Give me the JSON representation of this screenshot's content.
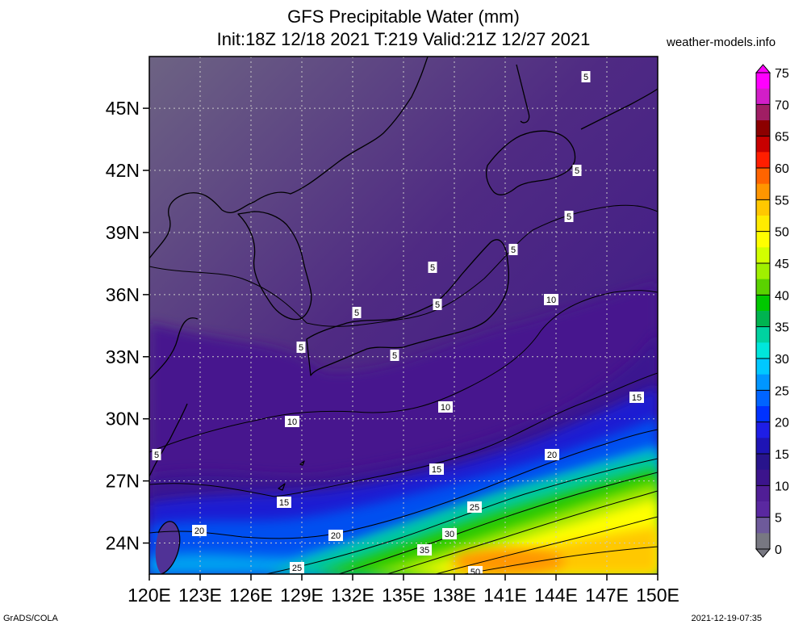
{
  "title_line1": "GFS Precipitable Water (mm)",
  "title_line2": "Init:18Z 12/18 2021 T:219 Valid:21Z 12/27 2021",
  "site": "weather-models.info",
  "footer_left": "GrADS/COLA",
  "footer_right": "2021-12-19-07:35",
  "map": {
    "lon_range": [
      120,
      150
    ],
    "lat_range": [
      22.5,
      47.5
    ],
    "lat_ticks": [
      "45N",
      "42N",
      "39N",
      "36N",
      "33N",
      "30N",
      "27N",
      "24N"
    ],
    "lon_ticks": [
      "120E",
      "123E",
      "126E",
      "129E",
      "132E",
      "135E",
      "138E",
      "141E",
      "144E",
      "147E",
      "150E"
    ],
    "contour_labels": [
      "5",
      "5",
      "5",
      "5",
      "5",
      "5",
      "5",
      "5",
      "5",
      "10",
      "10",
      "10",
      "15",
      "15",
      "15",
      "20",
      "20",
      "20",
      "25",
      "25",
      "30",
      "35",
      "5",
      "50"
    ]
  },
  "colorbar": {
    "labels": [
      "75",
      "70",
      "65",
      "60",
      "55",
      "50",
      "45",
      "40",
      "35",
      "30",
      "25",
      "20",
      "15",
      "10",
      "5",
      "0"
    ],
    "colors": [
      "#ff00ff",
      "#d21ec8",
      "#a01e64",
      "#8c0000",
      "#c80000",
      "#ff1e00",
      "#ff6400",
      "#ff9600",
      "#ffc800",
      "#ffeb00",
      "#ffff00",
      "#d2ff00",
      "#a0f000",
      "#5ad200",
      "#00c800",
      "#00b450",
      "#00d2a0",
      "#00e6dc",
      "#00c8ff",
      "#0096ff",
      "#0064ff",
      "#0032ff",
      "#1e1ee6",
      "#1e14b4",
      "#28148c",
      "#3c148c",
      "#501e96",
      "#5a28a0",
      "#6e5a9b",
      "#787882"
    ]
  }
}
